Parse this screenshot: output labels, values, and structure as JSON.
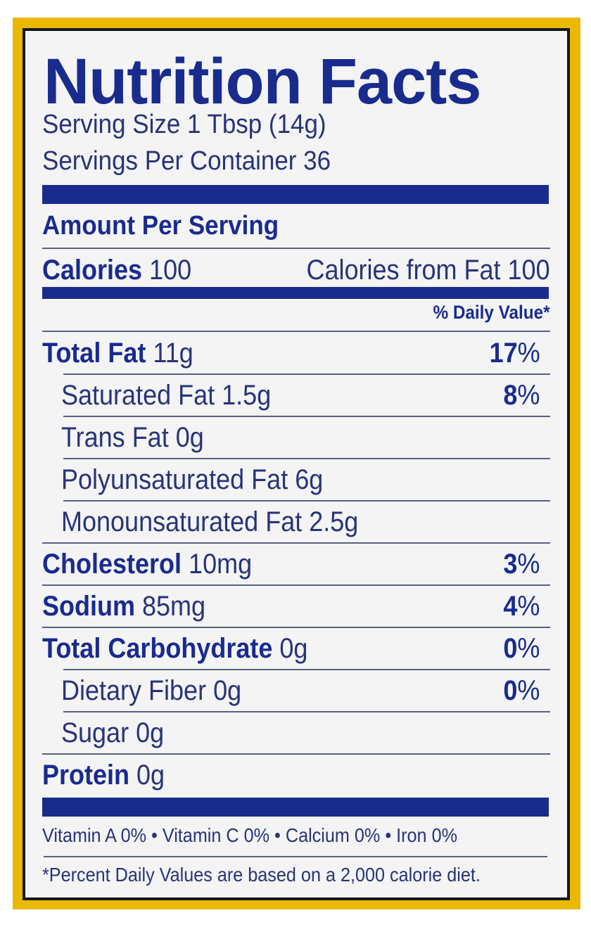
{
  "title": "Nutrition Facts",
  "serving_size": "Serving Size 1 Tbsp (14g)",
  "servings_per_container": "Servings Per Container 36",
  "amount_per_serving": "Amount Per Serving",
  "calories": {
    "label": "Calories",
    "value": "100",
    "from_fat": "Calories from Fat 100"
  },
  "daily_value_header": "% Daily Value*",
  "nutrients": [
    {
      "name": "Total Fat",
      "amount": "11g",
      "dv": "17",
      "bold": true
    },
    {
      "name": "Saturated Fat",
      "amount": "1.5g",
      "dv": "8",
      "bold": false
    },
    {
      "name": "Trans Fat",
      "amount": "0g",
      "dv": "",
      "bold": false
    },
    {
      "name": "Polyunsaturated Fat",
      "amount": "6g",
      "dv": "",
      "bold": false
    },
    {
      "name": "Monounsaturated Fat",
      "amount": "2.5g",
      "dv": "",
      "bold": false
    },
    {
      "name": "Cholesterol",
      "amount": "10mg",
      "dv": "3",
      "bold": true
    },
    {
      "name": "Sodium",
      "amount": "85mg",
      "dv": "4",
      "bold": true
    },
    {
      "name": "Total Carbohydrate",
      "amount": "0g",
      "dv": "0",
      "bold": true
    },
    {
      "name": "Dietary Fiber",
      "amount": "0g",
      "dv": "0",
      "bold": false
    },
    {
      "name": "Sugar",
      "amount": "0g",
      "dv": "",
      "bold": false
    },
    {
      "name": "Protein",
      "amount": "0g",
      "dv": "",
      "bold": true
    }
  ],
  "percent_sign": "%",
  "vitamins": "Vitamin A 0% • Vitamin C 0% • Calcium 0% • Iron 0%",
  "footnote": "*Percent Daily Values are based on a 2,000 calorie diet.",
  "colors": {
    "navy": "#1a2b8e",
    "yellow": "#e9b800",
    "background": "#f3f4f3"
  }
}
